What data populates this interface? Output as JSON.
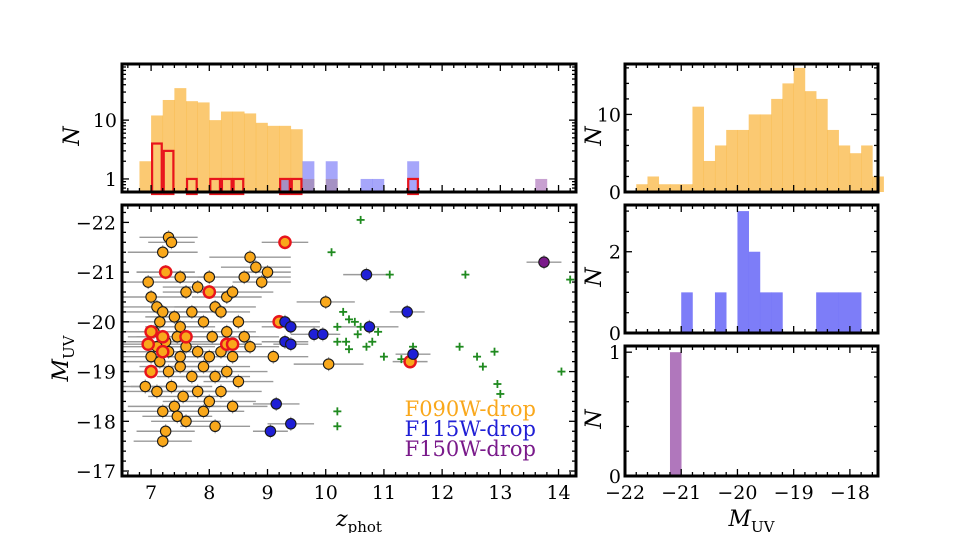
{
  "chart_data": [
    {
      "id": "zhist",
      "type": "histogram",
      "yscale": "log",
      "xlabel": "",
      "ylabel": "N",
      "xlim": [
        6.5,
        14.3
      ],
      "ylim": [
        0.6,
        90
      ],
      "yticks": [
        1,
        10
      ],
      "ytick_labels": [
        "1",
        "10"
      ],
      "bin_edges": [
        6.8,
        7.0,
        7.2,
        7.4,
        7.6,
        7.8,
        8.0,
        8.2,
        8.4,
        8.6,
        8.8,
        9.0,
        9.2,
        9.4,
        9.6,
        9.8,
        10.0,
        10.2,
        10.4,
        10.6,
        10.8,
        11.0,
        11.2,
        11.4,
        11.6,
        11.8,
        12.0,
        12.2,
        12.4,
        12.6,
        12.8,
        13.0,
        13.2,
        13.4,
        13.6,
        13.8
      ],
      "series": [
        {
          "name": "F090W-drop",
          "color": "#f9a81b",
          "style": "filled",
          "values": [
            2,
            12,
            22,
            35,
            21,
            20,
            10,
            14,
            14,
            13,
            9,
            8,
            8,
            7,
            1,
            0,
            1,
            0,
            0,
            0,
            0,
            0,
            0,
            0,
            0,
            0,
            0,
            0,
            0,
            0,
            0,
            0,
            0,
            0,
            0
          ]
        },
        {
          "name": "F115W-drop",
          "color": "#6f6ff7",
          "style": "filled",
          "values": [
            0,
            0,
            0,
            0,
            0,
            0,
            0,
            0,
            0,
            0,
            0,
            0,
            1,
            0,
            2,
            0,
            2,
            0,
            0,
            1,
            1,
            0,
            0,
            2,
            0,
            0,
            0,
            0,
            0,
            0,
            0,
            0,
            0,
            0,
            0
          ]
        },
        {
          "name": "F150W-drop",
          "color": "#a768b5",
          "style": "filled",
          "values": [
            0,
            0,
            0,
            0,
            0,
            0,
            0,
            0,
            0,
            0,
            0,
            0,
            0,
            0,
            0,
            0,
            0,
            0,
            0,
            0,
            0,
            0,
            0,
            0,
            0,
            0,
            0,
            0,
            0,
            0,
            0,
            0,
            0,
            0,
            1
          ]
        },
        {
          "name": "highlighted",
          "color": "#e8141c",
          "style": "step",
          "values": [
            0,
            4,
            3,
            0,
            1,
            0,
            1,
            1,
            1,
            0,
            0,
            0,
            1,
            1,
            0,
            0,
            0,
            0,
            0,
            0,
            0,
            0,
            0,
            1,
            0,
            0,
            0,
            0,
            0,
            0,
            0,
            0,
            0,
            0,
            0
          ]
        }
      ]
    },
    {
      "id": "scatter",
      "type": "scatter",
      "xlabel_main": "z",
      "xlabel_sub": "phot",
      "ylabel_main": "M",
      "ylabel_sub": "UV",
      "xlim": [
        6.5,
        14.3
      ],
      "ylim": [
        -16.9,
        -22.35
      ],
      "xticks": [
        7,
        8,
        9,
        10,
        11,
        12,
        13,
        14
      ],
      "xtick_labels": [
        "7",
        "8",
        "9",
        "10",
        "11",
        "12",
        "13",
        "14"
      ],
      "yticks": [
        -17,
        -18,
        -19,
        -20,
        -21,
        -22
      ],
      "ytick_labels": [
        "−17",
        "−18",
        "−19",
        "−20",
        "−21",
        "−22"
      ],
      "legend": [
        {
          "label": "F090W-drop",
          "color": "#f9a81b"
        },
        {
          "label": "F115W-drop",
          "color": "#1f1fd6"
        },
        {
          "label": "F150W-drop",
          "color": "#7a1a8a"
        }
      ],
      "series": [
        {
          "name": "F090W-drop",
          "color": "#f9a81b",
          "points": [
            [
              7.3,
              -21.7,
              0.5
            ],
            [
              7.35,
              -21.6,
              0.4
            ],
            [
              7.2,
              -21.4,
              0.6
            ],
            [
              7.25,
              -21.0,
              0.5
            ],
            [
              6.95,
              -20.8,
              0.8
            ],
            [
              7.5,
              -20.9,
              0.6
            ],
            [
              7.6,
              -20.6,
              0.4
            ],
            [
              7.8,
              -20.7,
              0.6
            ],
            [
              8.0,
              -20.9,
              0.5
            ],
            [
              8.1,
              -20.3,
              0.7
            ],
            [
              8.2,
              -20.2,
              0.5
            ],
            [
              8.3,
              -20.5,
              0.6
            ],
            [
              8.6,
              -20.9,
              0.8
            ],
            [
              8.7,
              -21.3,
              0.7
            ],
            [
              8.8,
              -21.1,
              0.6
            ],
            [
              8.9,
              -20.8,
              0.5
            ],
            [
              9.0,
              -21.0,
              0.4
            ],
            [
              8.5,
              -20.0,
              0.7
            ],
            [
              7.0,
              -20.5,
              0.6
            ],
            [
              7.1,
              -20.3,
              0.7
            ],
            [
              7.15,
              -20.0,
              0.9
            ],
            [
              7.4,
              -20.1,
              0.5
            ],
            [
              7.5,
              -19.9,
              0.6
            ],
            [
              7.7,
              -20.2,
              0.5
            ],
            [
              7.9,
              -20.0,
              0.6
            ],
            [
              8.05,
              -19.7,
              0.8
            ],
            [
              8.3,
              -19.8,
              0.5
            ],
            [
              8.6,
              -19.7,
              0.6
            ],
            [
              7.05,
              -19.8,
              1.0
            ],
            [
              7.25,
              -19.6,
              0.8
            ],
            [
              7.45,
              -19.7,
              0.7
            ],
            [
              7.6,
              -19.5,
              0.5
            ],
            [
              7.8,
              -19.4,
              0.6
            ],
            [
              8.0,
              -19.3,
              0.7
            ],
            [
              8.2,
              -19.4,
              0.5
            ],
            [
              8.4,
              -19.3,
              0.6
            ],
            [
              8.7,
              -19.5,
              0.5
            ],
            [
              9.1,
              -19.3,
              0.6
            ],
            [
              7.0,
              -19.3,
              0.9
            ],
            [
              7.15,
              -19.2,
              0.8
            ],
            [
              7.3,
              -19.0,
              0.9
            ],
            [
              7.5,
              -19.1,
              0.7
            ],
            [
              7.7,
              -18.9,
              0.6
            ],
            [
              7.9,
              -19.1,
              0.8
            ],
            [
              8.1,
              -18.9,
              0.6
            ],
            [
              8.3,
              -19.0,
              0.7
            ],
            [
              8.5,
              -18.8,
              0.6
            ],
            [
              6.9,
              -18.7,
              0.9
            ],
            [
              7.1,
              -18.6,
              0.8
            ],
            [
              7.35,
              -18.7,
              0.7
            ],
            [
              7.55,
              -18.5,
              0.6
            ],
            [
              7.8,
              -18.6,
              0.9
            ],
            [
              8.0,
              -18.4,
              0.8
            ],
            [
              8.2,
              -18.6,
              0.7
            ],
            [
              8.4,
              -18.3,
              0.6
            ],
            [
              7.2,
              -18.2,
              0.7
            ],
            [
              7.4,
              -18.3,
              0.8
            ],
            [
              7.6,
              -18.0,
              0.6
            ],
            [
              7.9,
              -18.2,
              0.7
            ],
            [
              8.1,
              -17.9,
              0.6
            ],
            [
              7.25,
              -17.8,
              0.5
            ],
            [
              7.45,
              -18.1,
              0.6
            ],
            [
              7.2,
              -17.6,
              0.5
            ],
            [
              7.1,
              -19.5,
              0.7
            ],
            [
              7.3,
              -19.4,
              0.8
            ],
            [
              7.5,
              -19.3,
              0.6
            ],
            [
              7.2,
              -20.2,
              0.8
            ],
            [
              8.4,
              -20.6,
              0.7
            ],
            [
              10.0,
              -20.4,
              0.5
            ],
            [
              10.05,
              -19.15,
              0.6
            ]
          ]
        },
        {
          "name": "red-ringed",
          "color": "#f9a81b",
          "edge": "#e8141c",
          "points": [
            [
              9.3,
              -21.6,
              0.4
            ],
            [
              7.25,
              -21.0,
              0.5
            ],
            [
              8.0,
              -20.6,
              0.5
            ],
            [
              7.0,
              -19.8,
              0.8
            ],
            [
              7.2,
              -19.7,
              0.6
            ],
            [
              7.6,
              -19.7,
              0.5
            ],
            [
              6.95,
              -19.55,
              0.9
            ],
            [
              7.2,
              -19.4,
              0.7
            ],
            [
              8.3,
              -19.55,
              0.6
            ],
            [
              8.4,
              -19.55,
              0.5
            ],
            [
              9.2,
              -20.0,
              0.5
            ],
            [
              7.0,
              -19.0,
              0.8
            ],
            [
              11.45,
              -19.2,
              0.3
            ]
          ]
        },
        {
          "name": "F115W-drop",
          "color": "#1f1fd6",
          "points": [
            [
              10.7,
              -20.95,
              0.4
            ],
            [
              11.4,
              -20.2,
              0.3
            ],
            [
              9.3,
              -20.0,
              0.6
            ],
            [
              9.4,
              -19.9,
              0.5
            ],
            [
              9.8,
              -19.75,
              0.4
            ],
            [
              9.95,
              -19.75,
              0.3
            ],
            [
              10.75,
              -19.9,
              0.5
            ],
            [
              9.3,
              -19.6,
              0.4
            ],
            [
              9.4,
              -19.55,
              0.3
            ],
            [
              11.5,
              -19.35,
              0.3
            ],
            [
              9.15,
              -18.35,
              0.4
            ],
            [
              9.4,
              -17.95,
              0.4
            ],
            [
              9.05,
              -17.8,
              0.3
            ]
          ]
        },
        {
          "name": "F150W-drop",
          "color": "#7a1a8a",
          "points": [
            [
              13.75,
              -21.2,
              0.3
            ]
          ]
        },
        {
          "name": "crosses",
          "color": "#1f8a1f",
          "points": [
            [
              10.6,
              -22.05
            ],
            [
              10.1,
              -21.4
            ],
            [
              11.1,
              -20.95
            ],
            [
              12.4,
              -20.95
            ],
            [
              14.2,
              -20.85
            ],
            [
              10.3,
              -20.2
            ],
            [
              10.4,
              -20.05
            ],
            [
              10.5,
              -20.0
            ],
            [
              10.2,
              -19.9
            ],
            [
              10.6,
              -19.9
            ],
            [
              10.9,
              -19.8
            ],
            [
              10.35,
              -19.6
            ],
            [
              10.55,
              -19.75
            ],
            [
              10.7,
              -19.5
            ],
            [
              11.0,
              -19.3
            ],
            [
              11.3,
              -19.25
            ],
            [
              10.2,
              -19.6
            ],
            [
              10.4,
              -19.45
            ],
            [
              12.3,
              -19.5
            ],
            [
              12.6,
              -19.3
            ],
            [
              12.9,
              -19.4
            ],
            [
              12.7,
              -19.1
            ],
            [
              14.05,
              -19.0
            ],
            [
              12.95,
              -18.75
            ],
            [
              13.0,
              -18.55
            ],
            [
              10.2,
              -18.2
            ],
            [
              10.2,
              -17.9
            ],
            [
              10.8,
              -19.6
            ],
            [
              11.5,
              -19.5
            ]
          ]
        }
      ]
    },
    {
      "id": "mhist1",
      "type": "histogram",
      "color": "#f9a81b",
      "ylabel": "N",
      "xlim": [
        -22.0,
        -17.5
      ],
      "ylim": [
        0,
        16.5
      ],
      "yticks": [
        0,
        10
      ],
      "ytick_labels": [
        "0",
        "10"
      ],
      "bin_start": -21.8,
      "bin_width": 0.2,
      "values": [
        1,
        2,
        1,
        1,
        1,
        11,
        4,
        6,
        8,
        8,
        10,
        10,
        12,
        14,
        16,
        13,
        12,
        8,
        6,
        5,
        6,
        2
      ]
    },
    {
      "id": "mhist2",
      "type": "histogram",
      "color": "#6f6ff7",
      "ylabel": "N",
      "xlim": [
        -22.0,
        -17.5
      ],
      "ylim": [
        0,
        3.15
      ],
      "yticks": [
        0,
        2
      ],
      "ytick_labels": [
        "0",
        "2"
      ],
      "bins": [
        [
          -21.0,
          -20.8,
          1
        ],
        [
          -20.4,
          -20.2,
          1
        ],
        [
          -20.0,
          -19.8,
          3
        ],
        [
          -19.8,
          -19.6,
          2
        ],
        [
          -19.6,
          -19.4,
          1
        ],
        [
          -19.4,
          -19.2,
          1
        ],
        [
          -18.6,
          -18.2,
          1
        ],
        [
          -18.2,
          -17.8,
          1
        ]
      ]
    },
    {
      "id": "mhist3",
      "type": "histogram",
      "color": "#a768b5",
      "ylabel": "N",
      "xlabel_main": "M",
      "xlabel_sub": "UV",
      "xlim": [
        -22.0,
        -17.5
      ],
      "ylim": [
        0,
        1.05
      ],
      "yticks": [
        0,
        1
      ],
      "ytick_labels": [
        "0",
        "1"
      ],
      "xticks": [
        -22,
        -21,
        -20,
        -19,
        -18
      ],
      "xtick_labels": [
        "−22",
        "−21",
        "−20",
        "−19",
        "−18"
      ],
      "bins": [
        [
          -21.2,
          -21.0,
          1
        ]
      ]
    }
  ]
}
